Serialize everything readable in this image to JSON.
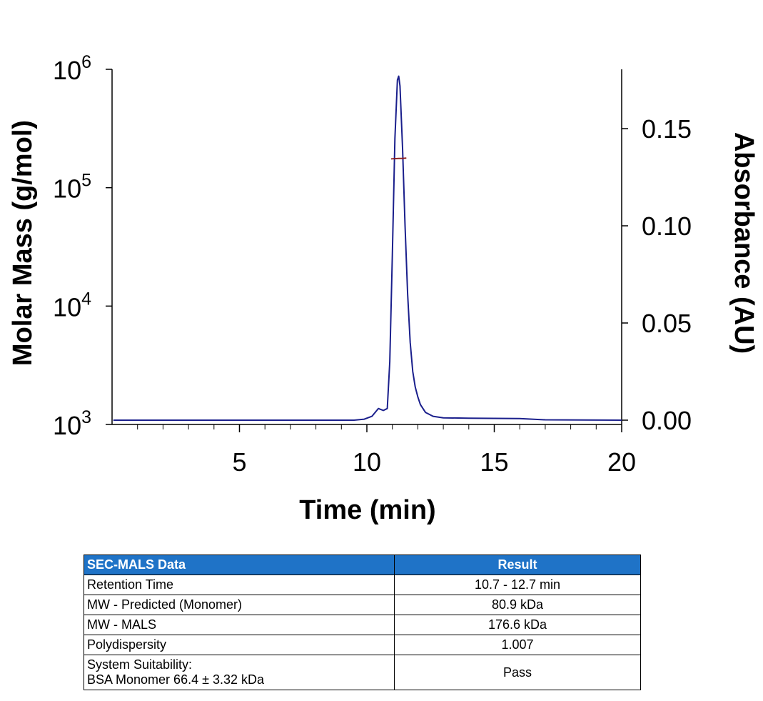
{
  "chart_data": {
    "type": "line",
    "xlabel": "Time (min)",
    "ylabel_left": "Molar Mass (g/mol)",
    "ylabel_right": "Absorbance (AU)",
    "xlim": [
      0,
      20
    ],
    "x_ticks": [
      5,
      10,
      15,
      20
    ],
    "y_left_scale": "log",
    "y_left_lim": [
      1000,
      1000000
    ],
    "y_left_ticks": [
      {
        "base": "10",
        "exp": "3"
      },
      {
        "base": "10",
        "exp": "4"
      },
      {
        "base": "10",
        "exp": "5"
      },
      {
        "base": "10",
        "exp": "6"
      }
    ],
    "y_left_tick_values": [
      1000,
      10000,
      100000,
      1000000
    ],
    "y_right_lim": [
      0,
      0.18
    ],
    "y_right_ticks": [
      "0.00",
      "0.05",
      "0.10",
      "0.15"
    ],
    "y_right_tick_values": [
      0,
      0.05,
      0.1,
      0.15
    ],
    "series": [
      {
        "color": "#1a1f8c",
        "axis": "right",
        "x": [
          0.05,
          5,
          9.5,
          9.9,
          10.2,
          10.45,
          10.65,
          10.8,
          10.9,
          11.0,
          11.1,
          11.2,
          11.25,
          11.3,
          11.4,
          11.5,
          11.6,
          11.7,
          11.8,
          11.9,
          12.0,
          12.1,
          12.3,
          12.6,
          13.0,
          14.0,
          16.0,
          17.0,
          20.0
        ],
        "y": [
          0.0,
          0.0,
          0.0,
          0.0005,
          0.002,
          0.006,
          0.005,
          0.006,
          0.03,
          0.085,
          0.145,
          0.175,
          0.177,
          0.172,
          0.14,
          0.1,
          0.065,
          0.04,
          0.025,
          0.017,
          0.012,
          0.008,
          0.004,
          0.002,
          0.0012,
          0.001,
          0.0008,
          0.0002,
          0.0
        ]
      },
      {
        "color": "#8b1a1a",
        "axis": "left",
        "x": [
          10.95,
          11.1,
          11.25,
          11.4,
          11.55
        ],
        "y": [
          175000,
          176000,
          176600,
          177000,
          178000
        ]
      }
    ]
  },
  "table": {
    "headers": [
      "SEC-MALS Data",
      "Result"
    ],
    "rows": [
      {
        "label": "Retention Time",
        "value": "10.7 - 12.7 min"
      },
      {
        "label": "MW - Predicted (Monomer)",
        "value": "80.9 kDa"
      },
      {
        "label": "MW - MALS",
        "value": "176.6 kDa"
      },
      {
        "label": "Polydispersity",
        "value": "1.007"
      },
      {
        "label": "System Suitability:",
        "label2": "BSA Monomer 66.4 ± 3.32 kDa",
        "value": "Pass"
      }
    ]
  }
}
